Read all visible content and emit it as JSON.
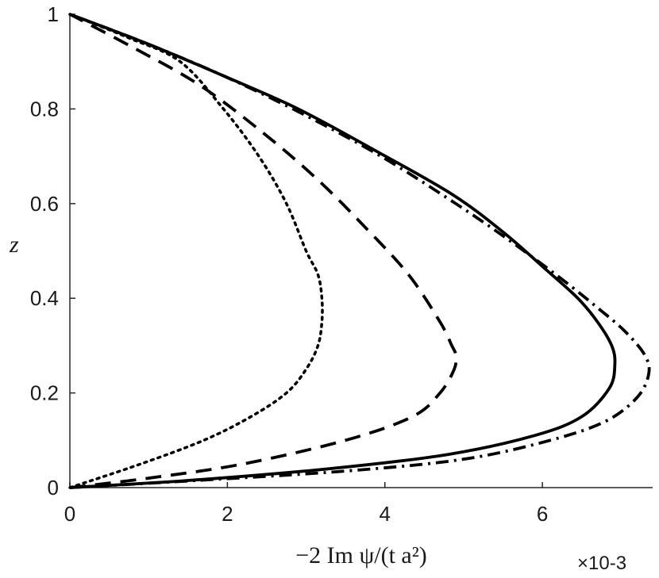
{
  "chart_data": {
    "type": "line",
    "title": "",
    "xlabel": "−2 Im ψ/(t a²)",
    "ylabel": "z",
    "x_multiplier": "×10-3",
    "xlim": [
      0,
      7.4
    ],
    "ylim": [
      0,
      1
    ],
    "x_ticks": [
      "0",
      "2",
      "4",
      "6"
    ],
    "y_ticks": [
      "0",
      "0.2",
      "0.4",
      "0.6",
      "0.8",
      "1"
    ],
    "grid": false,
    "legend": "none",
    "line_color": "#000000",
    "series": [
      {
        "style": "dotted",
        "x": [
          0,
          0.9,
          1.7,
          2.3,
          2.75,
          3.0,
          3.15,
          3.2,
          3.2,
          3.15,
          3.0,
          2.75,
          2.4,
          1.95,
          1.4,
          0.75,
          0
        ],
        "y": [
          0,
          0.05,
          0.1,
          0.15,
          0.2,
          0.25,
          0.3,
          0.35,
          0.4,
          0.45,
          0.5,
          0.6,
          0.7,
          0.8,
          0.9,
          0.95,
          1
        ]
      },
      {
        "style": "dashed",
        "x": [
          0,
          1.0,
          2.2,
          3.5,
          4.35,
          4.7,
          4.88,
          4.9,
          4.85,
          4.7,
          4.3,
          3.75,
          3.15,
          2.45,
          1.65,
          0.8,
          0
        ],
        "y": [
          0,
          0.02,
          0.05,
          0.1,
          0.15,
          0.2,
          0.25,
          0.28,
          0.3,
          0.35,
          0.45,
          0.55,
          0.65,
          0.75,
          0.85,
          0.93,
          1
        ]
      },
      {
        "style": "solid",
        "x": [
          0,
          1.5,
          3.3,
          4.8,
          5.9,
          6.5,
          6.85,
          6.92,
          6.88,
          6.7,
          6.45,
          6.05,
          5.5,
          4.85,
          3.9,
          2.9,
          1.95,
          0.95,
          0
        ],
        "y": [
          0,
          0.015,
          0.04,
          0.07,
          0.11,
          0.15,
          0.21,
          0.26,
          0.3,
          0.35,
          0.4,
          0.46,
          0.54,
          0.62,
          0.71,
          0.8,
          0.87,
          0.94,
          1
        ]
      },
      {
        "style": "dash-dot",
        "x": [
          0,
          1.6,
          3.5,
          5.0,
          6.1,
          6.8,
          7.2,
          7.35,
          7.3,
          7.05,
          6.7,
          6.25,
          5.6,
          4.9,
          3.95,
          2.95,
          1.95,
          0.95,
          0
        ],
        "y": [
          0,
          0.015,
          0.035,
          0.06,
          0.1,
          0.14,
          0.19,
          0.24,
          0.28,
          0.33,
          0.38,
          0.44,
          0.52,
          0.6,
          0.7,
          0.79,
          0.87,
          0.94,
          1
        ]
      }
    ]
  }
}
